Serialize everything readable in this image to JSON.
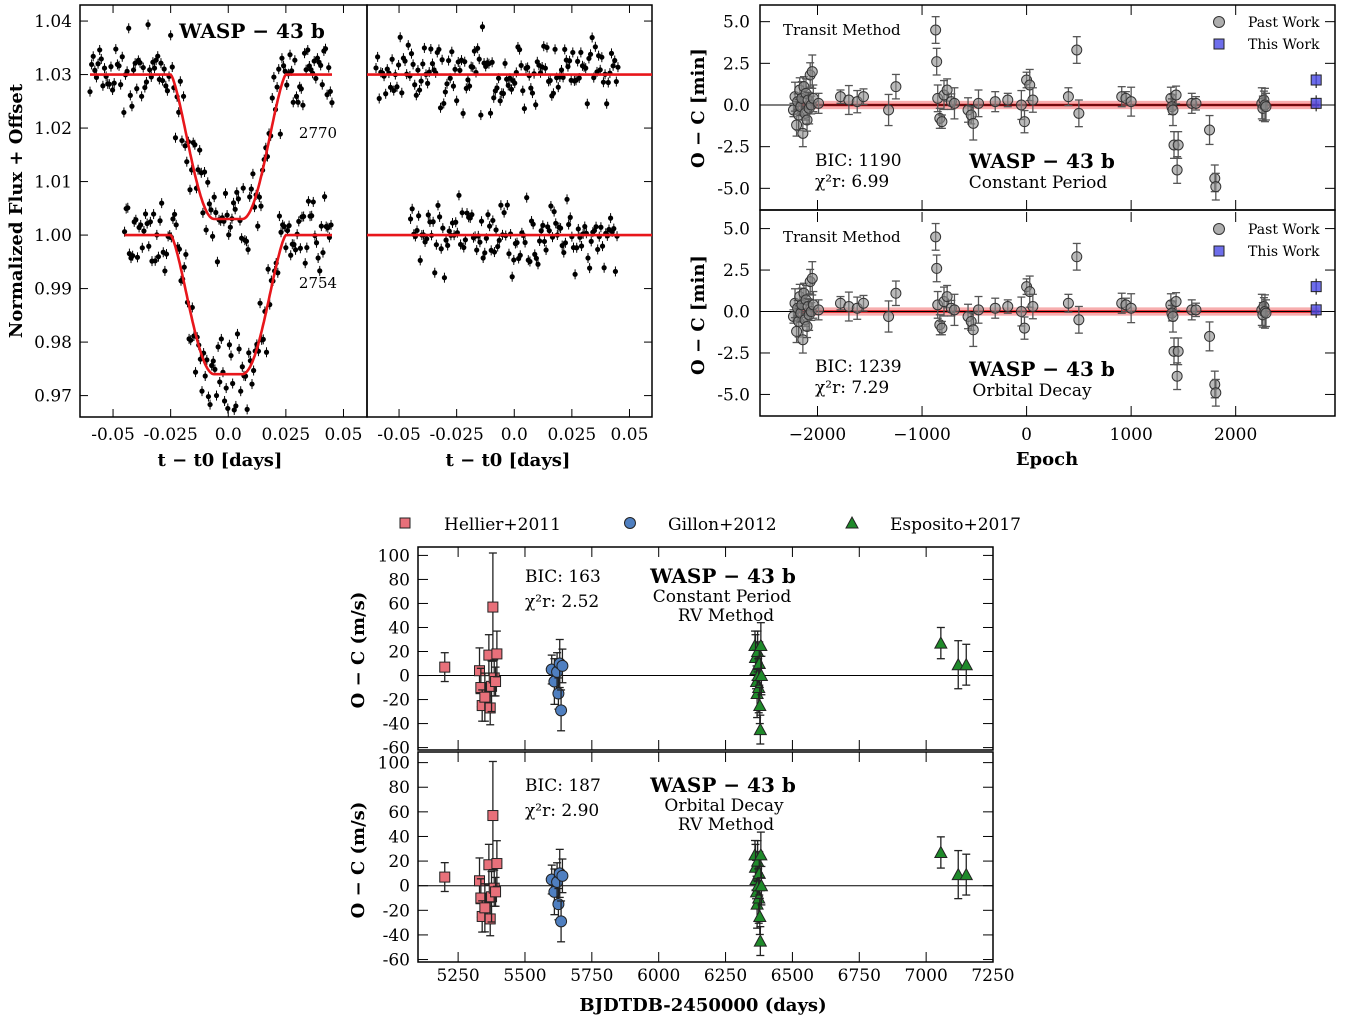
{
  "figure": {
    "lightcurve": {
      "title": "WASP − 43 b",
      "ylabel": "Normalized Flux + Offset",
      "xlabel_left": "t − t0 [days]",
      "xlabel_right": "t − t0 [days]",
      "epoch_labels": [
        "2770",
        "2754"
      ],
      "yticks": [
        "1.04",
        "1.03",
        "1.02",
        "1.01",
        "1.00",
        "0.99",
        "0.98",
        "0.97"
      ],
      "xticks": [
        "-0.05",
        "-0.025",
        "0.0",
        "0.025",
        "0.05"
      ]
    },
    "oc_transit": {
      "ylabel": "O − C [min]",
      "xlabel": "Epoch",
      "method": "Transit Method",
      "planet": "WASP − 43 b",
      "legend": [
        "Past Work",
        "This Work"
      ],
      "yticks": [
        "5.0",
        "2.5",
        "0.0",
        "-2.5",
        "-5.0"
      ],
      "xticks": [
        "−2000",
        "−1000",
        "0",
        "1000",
        "2000"
      ],
      "top": {
        "bic": "BIC: 1190",
        "chi": "χ²r: 6.99",
        "model": "Constant Period"
      },
      "bottom": {
        "bic": "BIC: 1239",
        "chi": "χ²r: 7.29",
        "model": "Orbital Decay"
      }
    },
    "oc_rv": {
      "ylabel": "O − C (m/s)",
      "xlabel": "BJDTDB-2450000 (days)",
      "planet": "WASP − 43 b",
      "method": "RV Method",
      "legend": [
        "Hellier+2011",
        "Gillon+2012",
        "Esposito+2017"
      ],
      "yticks": [
        "100",
        "80",
        "60",
        "40",
        "20",
        "0",
        "-20",
        "-40",
        "-60"
      ],
      "xticks": [
        "5250",
        "5500",
        "5750",
        "6000",
        "6250",
        "6500",
        "6750",
        "7000",
        "7250"
      ],
      "top": {
        "bic": "BIC: 163",
        "chi": "χ²r: 2.52",
        "model": "Constant Period"
      },
      "bottom": {
        "bic": "BIC: 187",
        "chi": "χ²r: 2.90",
        "model": "Orbital Decay"
      }
    },
    "colors": {
      "model": "#e8161b",
      "past": "#8c8c8c",
      "this": "#4a4ae6",
      "hellier": "#e8707a",
      "gillon": "#4f7fc0",
      "esposito": "#1f8a2a"
    }
  },
  "chart_data": [
    {
      "type": "scatter",
      "title": "WASP − 43 b",
      "xlabel": "t − t0 [days]",
      "ylabel": "Normalized Flux + Offset",
      "xlim": [
        -0.06,
        0.055
      ],
      "ylim": [
        0.966,
        1.043
      ],
      "series": [
        {
          "name": "2770",
          "model": "transit",
          "depth": 0.027,
          "baseline": 1.03,
          "x_range": [
            -0.06,
            0.045
          ]
        },
        {
          "name": "2754",
          "model": "transit",
          "depth": 0.026,
          "baseline": 1.0,
          "x_range": [
            -0.045,
            0.045
          ]
        }
      ]
    },
    {
      "type": "scatter",
      "xlabel": "t − t0 [days]",
      "xlim": [
        -0.06,
        0.055
      ],
      "ylim": [
        0.966,
        1.043
      ],
      "series": [
        {
          "name": "2770 residuals",
          "baseline": 1.03
        },
        {
          "name": "2754 residuals",
          "baseline": 1.0
        }
      ]
    },
    {
      "type": "scatter",
      "xlabel": "Epoch",
      "ylabel": "O − C [min]",
      "xlim": [
        -2550,
        2950
      ],
      "ylim": [
        -6.3,
        6.0
      ],
      "model": "Constant Period",
      "series": [
        {
          "name": "Past Work",
          "points": [
            [
              -2230,
              -0.3
            ],
            [
              -2215,
              0.5
            ],
            [
              -2200,
              -1.2
            ],
            [
              -2190,
              0.2
            ],
            [
              -2180,
              -0.6
            ],
            [
              -2170,
              0.9
            ],
            [
              -2160,
              -0.1
            ],
            [
              -2150,
              0.4
            ],
            [
              -2140,
              -1.7
            ],
            [
              -2130,
              1.1
            ],
            [
              -2120,
              -0.5
            ],
            [
              -2110,
              0.7
            ],
            [
              -2100,
              -0.9
            ],
            [
              -2090,
              0.3
            ],
            [
              -2080,
              -0.2
            ],
            [
              -2070,
              1.8
            ],
            [
              -2060,
              0.0
            ],
            [
              -2050,
              2.0
            ],
            [
              -2040,
              0.4
            ],
            [
              -1990,
              0.1
            ],
            [
              -1780,
              0.5
            ],
            [
              -1700,
              0.3
            ],
            [
              -1620,
              0.2
            ],
            [
              -1560,
              0.5
            ],
            [
              -1320,
              -0.3
            ],
            [
              -1250,
              1.1
            ],
            [
              -870,
              4.5
            ],
            [
              -860,
              2.6
            ],
            [
              -850,
              0.4
            ],
            [
              -830,
              -0.8
            ],
            [
              -810,
              -1.0
            ],
            [
              -790,
              0.6
            ],
            [
              -760,
              0.9
            ],
            [
              -720,
              0.2
            ],
            [
              -690,
              0.1
            ],
            [
              -560,
              -0.3
            ],
            [
              -530,
              -0.6
            ],
            [
              -510,
              -1.1
            ],
            [
              -460,
              0.1
            ],
            [
              -300,
              0.2
            ],
            [
              -180,
              0.3
            ],
            [
              -50,
              0.0
            ],
            [
              -20,
              -1.0
            ],
            [
              0,
              1.5
            ],
            [
              30,
              1.2
            ],
            [
              60,
              0.3
            ],
            [
              400,
              0.5
            ],
            [
              480,
              3.3
            ],
            [
              500,
              -0.5
            ],
            [
              910,
              0.5
            ],
            [
              950,
              0.4
            ],
            [
              1000,
              0.2
            ],
            [
              1380,
              0.4
            ],
            [
              1390,
              -0.1
            ],
            [
              1400,
              -0.3
            ],
            [
              1410,
              -2.4
            ],
            [
              1430,
              0.6
            ],
            [
              1440,
              -3.9
            ],
            [
              1450,
              -2.4
            ],
            [
              1580,
              0.1
            ],
            [
              1620,
              0.1
            ],
            [
              1750,
              -1.5
            ],
            [
              1800,
              -4.4
            ],
            [
              1810,
              -4.9
            ],
            [
              2250,
              0.1
            ],
            [
              2260,
              -0.2
            ],
            [
              2270,
              0.3
            ],
            [
              2280,
              0.0
            ],
            [
              2290,
              -0.1
            ]
          ]
        },
        {
          "name": "This Work",
          "points": [
            [
              2770,
              1.5
            ],
            [
              2770,
              0.1
            ]
          ]
        }
      ]
    },
    {
      "type": "scatter",
      "xlabel": "Epoch",
      "ylabel": "O − C [min]",
      "model": "Orbital Decay"
    },
    {
      "type": "scatter",
      "xlabel": "BJDTDB-2450000 (days)",
      "ylabel": "O − C (m/s)",
      "xlim": [
        5100,
        7250
      ],
      "ylim": [
        -62,
        107
      ],
      "model": "Constant Period",
      "series": [
        {
          "name": "Hellier+2011",
          "points": [
            [
              5200,
              7
            ],
            [
              5330,
              4
            ],
            [
              5335,
              -10
            ],
            [
              5340,
              -25
            ],
            [
              5350,
              -18
            ],
            [
              5365,
              17
            ],
            [
              5370,
              -27
            ],
            [
              5375,
              -9
            ],
            [
              5380,
              57
            ],
            [
              5385,
              -2
            ],
            [
              5390,
              -5
            ],
            [
              5395,
              18
            ]
          ]
        },
        {
          "name": "Gillon+2012",
          "points": [
            [
              5600,
              5
            ],
            [
              5610,
              -5
            ],
            [
              5620,
              3
            ],
            [
              5625,
              -15
            ],
            [
              5630,
              10
            ],
            [
              5635,
              -29
            ],
            [
              5640,
              8
            ]
          ]
        },
        {
          "name": "Esposito+2017",
          "points": [
            [
              6360,
              25
            ],
            [
              6362,
              15
            ],
            [
              6364,
              5
            ],
            [
              6366,
              -5
            ],
            [
              6368,
              -15
            ],
            [
              6370,
              20
            ],
            [
              6372,
              0
            ],
            [
              6374,
              -10
            ],
            [
              6376,
              10
            ],
            [
              6378,
              -25
            ],
            [
              6380,
              -45
            ],
            [
              6382,
              25
            ],
            [
              6384,
              0
            ],
            [
              7055,
              27
            ],
            [
              7120,
              9
            ],
            [
              7150,
              9
            ]
          ]
        }
      ]
    },
    {
      "type": "scatter",
      "xlabel": "BJDTDB-2450000 (days)",
      "ylabel": "O − C (m/s)",
      "model": "Orbital Decay"
    }
  ]
}
